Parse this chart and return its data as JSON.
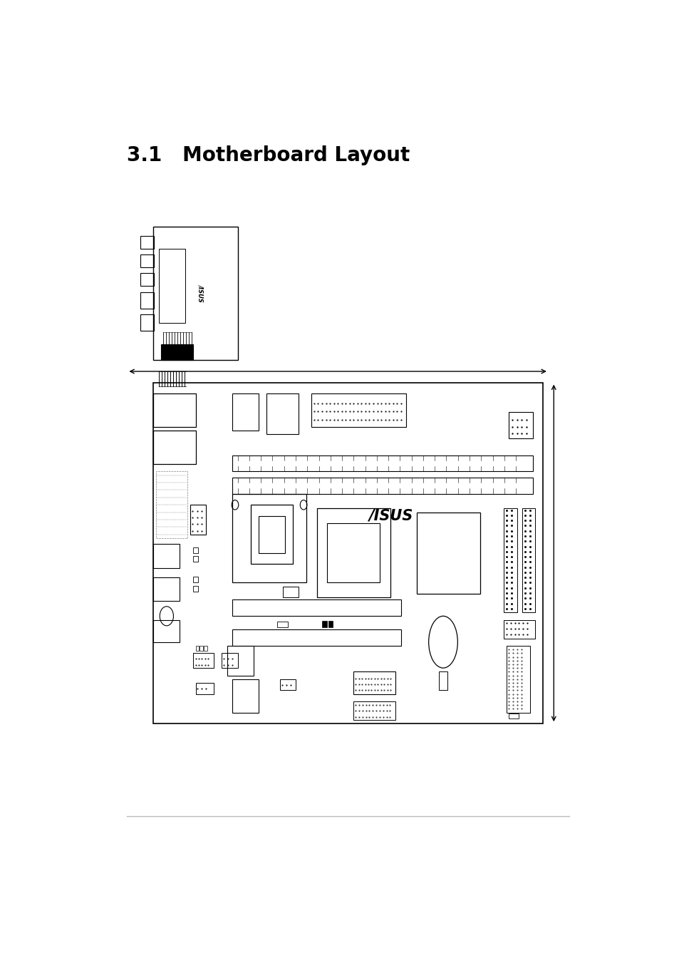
{
  "title": "3.1   Motherboard Layout",
  "bg_color": "#ffffff",
  "line_color": "#000000",
  "bottom_line_color": "#bbbbbb",
  "fig_width": 9.54,
  "fig_height": 13.51
}
